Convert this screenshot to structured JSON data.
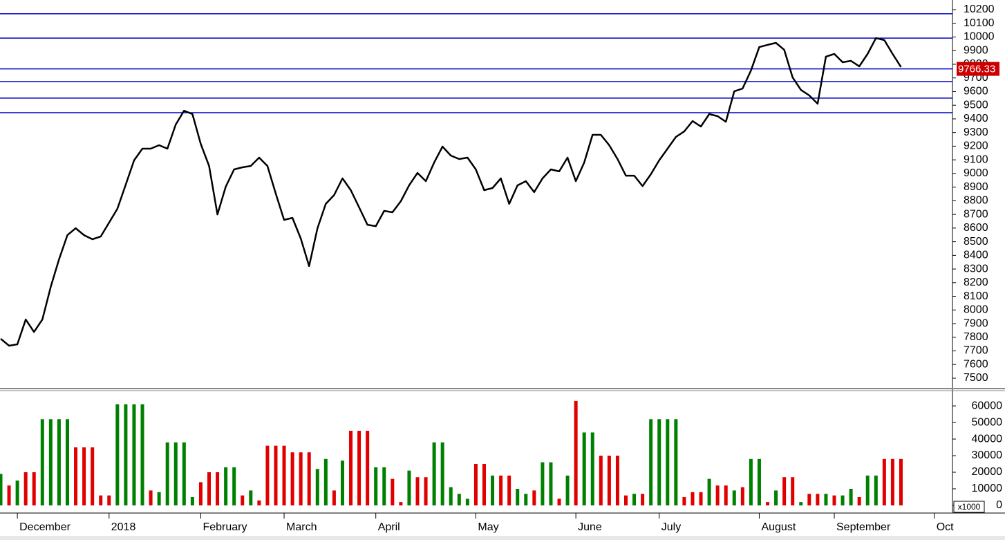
{
  "chart_data": [
    {
      "type": "line",
      "color": "#000000",
      "categories": [
        null,
        null,
        "December",
        null,
        null,
        null,
        null,
        null,
        null,
        null,
        null,
        null,
        null,
        "2018",
        null,
        null,
        null,
        null,
        null,
        null,
        null,
        null,
        null,
        null,
        "February",
        null,
        null,
        null,
        null,
        null,
        null,
        null,
        null,
        null,
        "March",
        null,
        null,
        null,
        null,
        null,
        null,
        null,
        null,
        null,
        null,
        "April",
        null,
        null,
        null,
        null,
        null,
        null,
        null,
        null,
        null,
        null,
        null,
        "May",
        null,
        null,
        null,
        null,
        null,
        null,
        null,
        null,
        null,
        null,
        null,
        "June",
        null,
        null,
        null,
        null,
        null,
        null,
        null,
        null,
        null,
        "July",
        null,
        null,
        null,
        null,
        null,
        null,
        null,
        null,
        null,
        null,
        null,
        "August",
        null,
        null,
        null,
        null,
        null,
        null,
        null,
        null,
        "September",
        null,
        null,
        null,
        null,
        null,
        null,
        null,
        null,
        null,
        null,
        null,
        "Oct"
      ],
      "values": [
        7789,
        7738,
        7748,
        7930,
        7839,
        7930,
        8169,
        8371,
        8548,
        8599,
        8548,
        8518,
        8538,
        8640,
        8741,
        8918,
        9096,
        9182,
        9182,
        9207,
        9182,
        9359,
        9460,
        9435,
        9217,
        9055,
        8700,
        8903,
        9030,
        9045,
        9055,
        9116,
        9055,
        8852,
        8660,
        8675,
        8523,
        8321,
        8599,
        8777,
        8842,
        8964,
        8878,
        8751,
        8624,
        8614,
        8726,
        8716,
        8797,
        8913,
        9004,
        8944,
        9080,
        9197,
        9131,
        9106,
        9116,
        9030,
        8878,
        8893,
        8964,
        8777,
        8913,
        8944,
        8863,
        8964,
        9030,
        9015,
        9116,
        8944,
        9080,
        9283,
        9283,
        9207,
        9106,
        8984,
        8984,
        8908,
        8995,
        9096,
        9182,
        9268,
        9308,
        9384,
        9344,
        9435,
        9420,
        9379,
        9602,
        9622,
        9754,
        9926,
        9942,
        9957,
        9906,
        9704,
        9612,
        9572,
        9511,
        9856,
        9876,
        9815,
        9825,
        9785,
        9876,
        9992,
        9977,
        9876,
        9780,
        null,
        null,
        null,
        null
      ],
      "ylim": [
        7424,
        10271
      ],
      "yticks": [
        7500,
        7600,
        7700,
        7800,
        7900,
        8000,
        8100,
        8200,
        8300,
        8400,
        8500,
        8600,
        8700,
        8800,
        8900,
        9000,
        9100,
        9200,
        9300,
        9400,
        9500,
        9600,
        9700,
        9800,
        9900,
        10000,
        10100,
        10200
      ],
      "hlines": [
        10170,
        9992,
        9766,
        9673,
        9552,
        9445
      ],
      "hline_color": "#0000c0",
      "last_label": {
        "value": 9766.33,
        "label": "9766.33"
      },
      "last_label_color": "#cc0000"
    },
    {
      "type": "bar",
      "values": [
        19000,
        12000,
        15000,
        20000,
        20000,
        52000,
        52000,
        52000,
        52000,
        35000,
        35000,
        35000,
        6000,
        6000,
        61000,
        61000,
        61000,
        61000,
        9000,
        8000,
        38000,
        38000,
        38000,
        5000,
        14000,
        20000,
        20000,
        23000,
        23000,
        6000,
        9000,
        3000,
        36000,
        36000,
        36000,
        32000,
        32000,
        32000,
        22000,
        28000,
        9000,
        27000,
        45000,
        45000,
        45000,
        23000,
        23000,
        16000,
        2000,
        21000,
        17000,
        17000,
        38000,
        38000,
        11000,
        7000,
        4000,
        25000,
        25000,
        18000,
        18000,
        18000,
        10000,
        7000,
        9000,
        26000,
        26000,
        4000,
        18000,
        63000,
        44000,
        44000,
        30000,
        30000,
        30000,
        6000,
        7000,
        7000,
        52000,
        52000,
        52000,
        52000,
        5000,
        8000,
        8000,
        16000,
        12000,
        12000,
        9000,
        11000,
        28000,
        28000,
        2000,
        9000,
        17000,
        17000,
        2000,
        7000,
        7000,
        7000,
        6000,
        6000,
        10000,
        5000,
        18000,
        18000,
        28000,
        28000,
        28000,
        null,
        null,
        null,
        null
      ],
      "colors": [
        "#008000",
        "#e00000",
        "#008000",
        "#e00000",
        "#e00000",
        "#008000",
        "#008000",
        "#008000",
        "#008000",
        "#e00000",
        "#e00000",
        "#e00000",
        "#e00000",
        "#e00000",
        "#008000",
        "#008000",
        "#008000",
        "#008000",
        "#e00000",
        "#008000",
        "#008000",
        "#008000",
        "#008000",
        "#008000",
        "#e00000",
        "#e00000",
        "#e00000",
        "#008000",
        "#008000",
        "#e00000",
        "#008000",
        "#e00000",
        "#e00000",
        "#e00000",
        "#e00000",
        "#e00000",
        "#e00000",
        "#e00000",
        "#008000",
        "#008000",
        "#e00000",
        "#008000",
        "#e00000",
        "#e00000",
        "#e00000",
        "#008000",
        "#008000",
        "#e00000",
        "#e00000",
        "#008000",
        "#e00000",
        "#e00000",
        "#008000",
        "#008000",
        "#008000",
        "#008000",
        "#008000",
        "#e00000",
        "#e00000",
        "#008000",
        "#e00000",
        "#e00000",
        "#008000",
        "#008000",
        "#e00000",
        "#008000",
        "#008000",
        "#e00000",
        "#008000",
        "#e00000",
        "#008000",
        "#008000",
        "#e00000",
        "#e00000",
        "#e00000",
        "#e00000",
        "#008000",
        "#e00000",
        "#008000",
        "#008000",
        "#008000",
        "#008000",
        "#e00000",
        "#e00000",
        "#e00000",
        "#008000",
        "#e00000",
        "#e00000",
        "#008000",
        "#e00000",
        "#008000",
        "#008000",
        "#e00000",
        "#008000",
        "#e00000",
        "#e00000",
        "#008000",
        "#e00000",
        "#e00000",
        "#008000",
        "#e00000",
        "#008000",
        "#008000",
        "#e00000",
        "#008000",
        "#008000",
        "#e00000",
        "#e00000",
        "#e00000",
        null,
        null,
        null,
        null
      ],
      "ylim": [
        -4600,
        69200
      ],
      "yticks": [
        0,
        10000,
        20000,
        30000,
        40000,
        50000,
        60000
      ],
      "unit_label": "x1000"
    }
  ]
}
